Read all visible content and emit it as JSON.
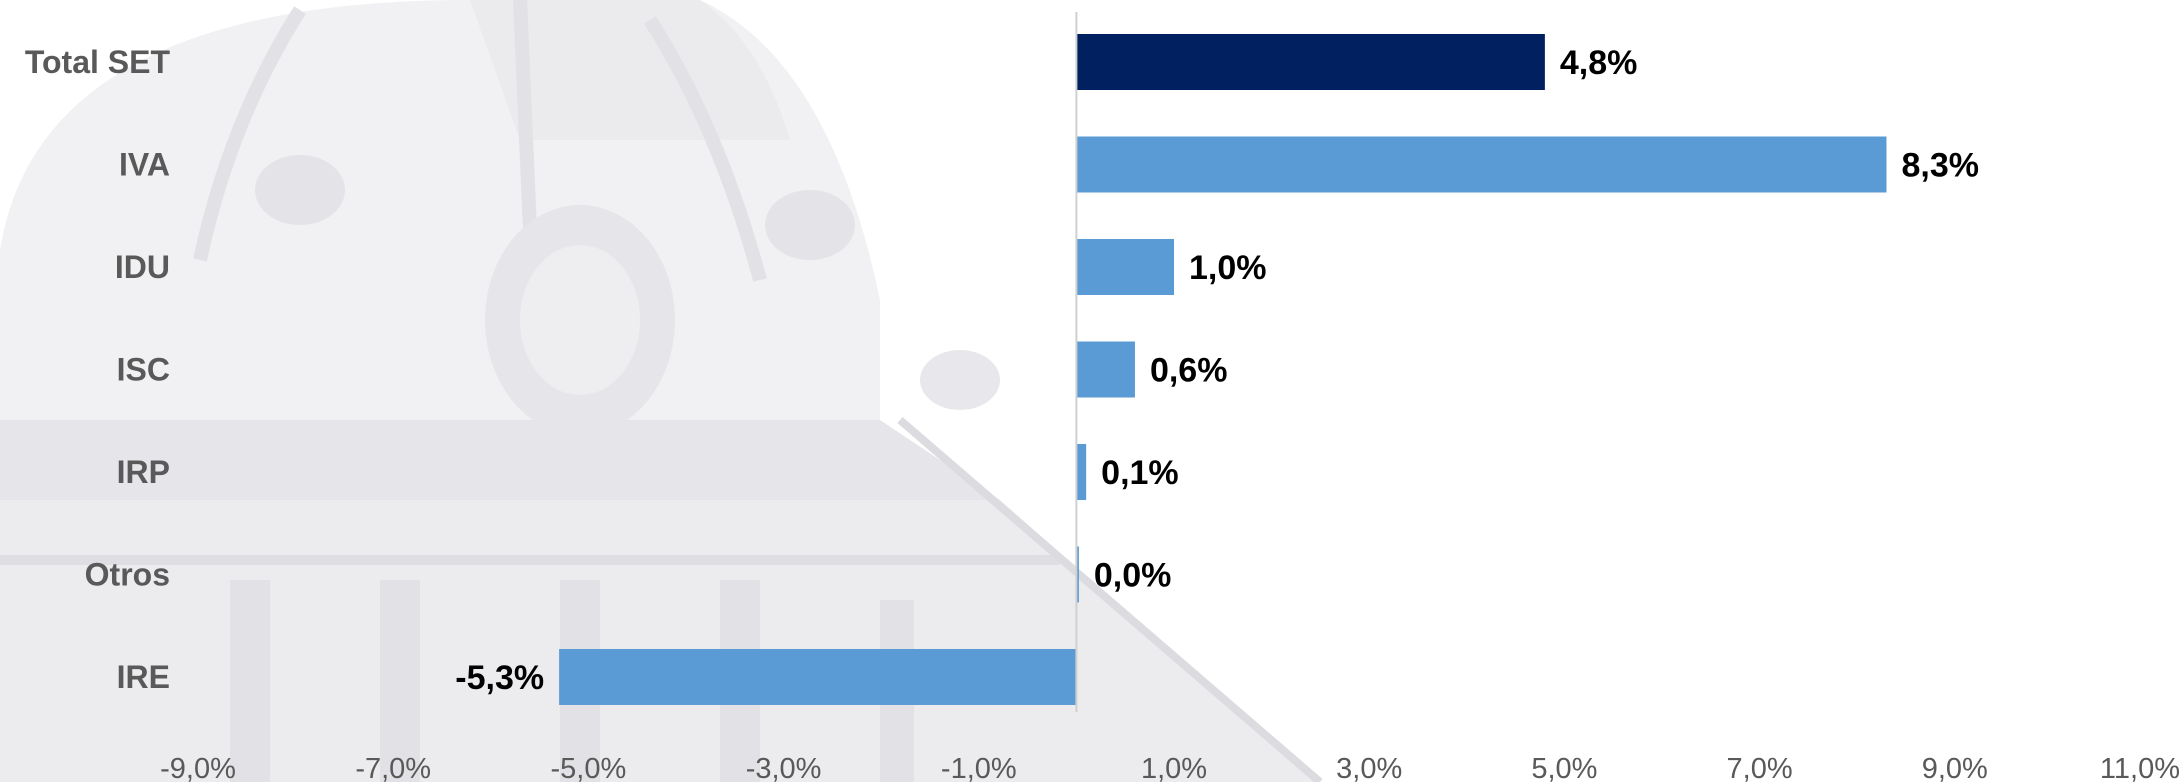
{
  "chart_data": {
    "type": "bar",
    "orientation": "horizontal",
    "title": "",
    "xlabel": "",
    "ylabel": "",
    "categories": [
      "Total SET",
      "IVA",
      "IDU",
      "ISC",
      "IRP",
      "Otros",
      "IRE"
    ],
    "values": [
      4.8,
      8.3,
      1.0,
      0.6,
      0.1,
      0.0,
      -5.3
    ],
    "value_labels": [
      "4,8%",
      "8,3%",
      "1,0%",
      "0,6%",
      "0,1%",
      "0,0%",
      "-5,3%"
    ],
    "bar_colors": [
      "#002060",
      "#5b9bd5",
      "#5b9bd5",
      "#5b9bd5",
      "#5b9bd5",
      "#5b9bd5",
      "#5b9bd5"
    ],
    "xlim": [
      -9.0,
      11.0
    ],
    "x_ticks": [
      -9,
      -7,
      -5,
      -3,
      -1,
      1,
      3,
      5,
      7,
      9,
      11
    ],
    "x_tick_labels": [
      "-9,0%",
      "-7,0%",
      "-5,0%",
      "-3,0%",
      "-1,0%",
      "1,0%",
      "3,0%",
      "5,0%",
      "7,0%",
      "9,0%",
      "11,0%"
    ],
    "grid": false,
    "legend": "none",
    "background_icon": "building-dome-watermark-icon"
  }
}
